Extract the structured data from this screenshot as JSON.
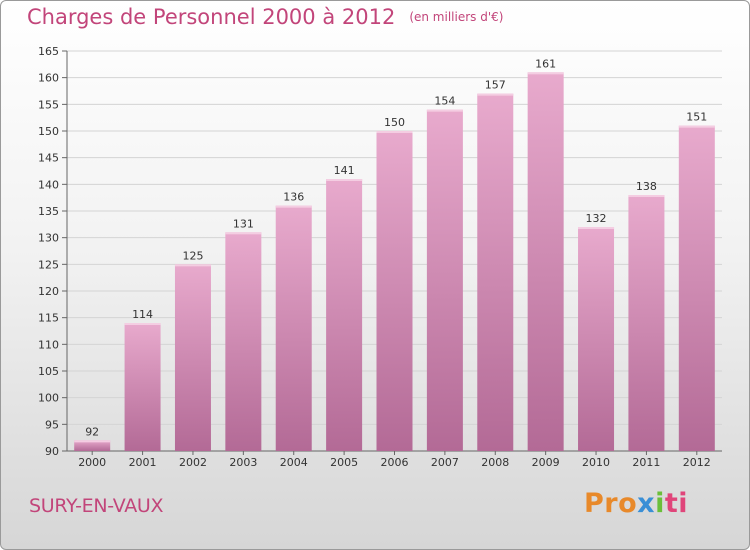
{
  "chart_data": {
    "type": "bar",
    "title": "Charges de Personnel 2000 à 2012",
    "subtitle": "(en milliers d'€)",
    "categories": [
      "2000",
      "2001",
      "2002",
      "2003",
      "2004",
      "2005",
      "2006",
      "2007",
      "2008",
      "2009",
      "2010",
      "2011",
      "2012"
    ],
    "values": [
      92,
      114,
      125,
      131,
      136,
      141,
      150,
      154,
      157,
      161,
      132,
      138,
      151
    ],
    "yticks": [
      90,
      95,
      100,
      105,
      110,
      115,
      120,
      125,
      130,
      135,
      140,
      145,
      150,
      155,
      160,
      165
    ],
    "ylim": [
      90,
      165
    ],
    "grid": true,
    "xlabel": "",
    "ylabel": ""
  },
  "commune": "SURY-EN-VAUX",
  "brand": {
    "parts": [
      "Pro",
      "x",
      "i",
      "ti"
    ],
    "colors": [
      "#e8892a",
      "#3a8fd6",
      "#6abf3a",
      "#e0457a"
    ]
  },
  "colors": {
    "bar_top": "#e8aacd",
    "bar_bottom": "#b36a96",
    "accent": "#c2457a"
  }
}
